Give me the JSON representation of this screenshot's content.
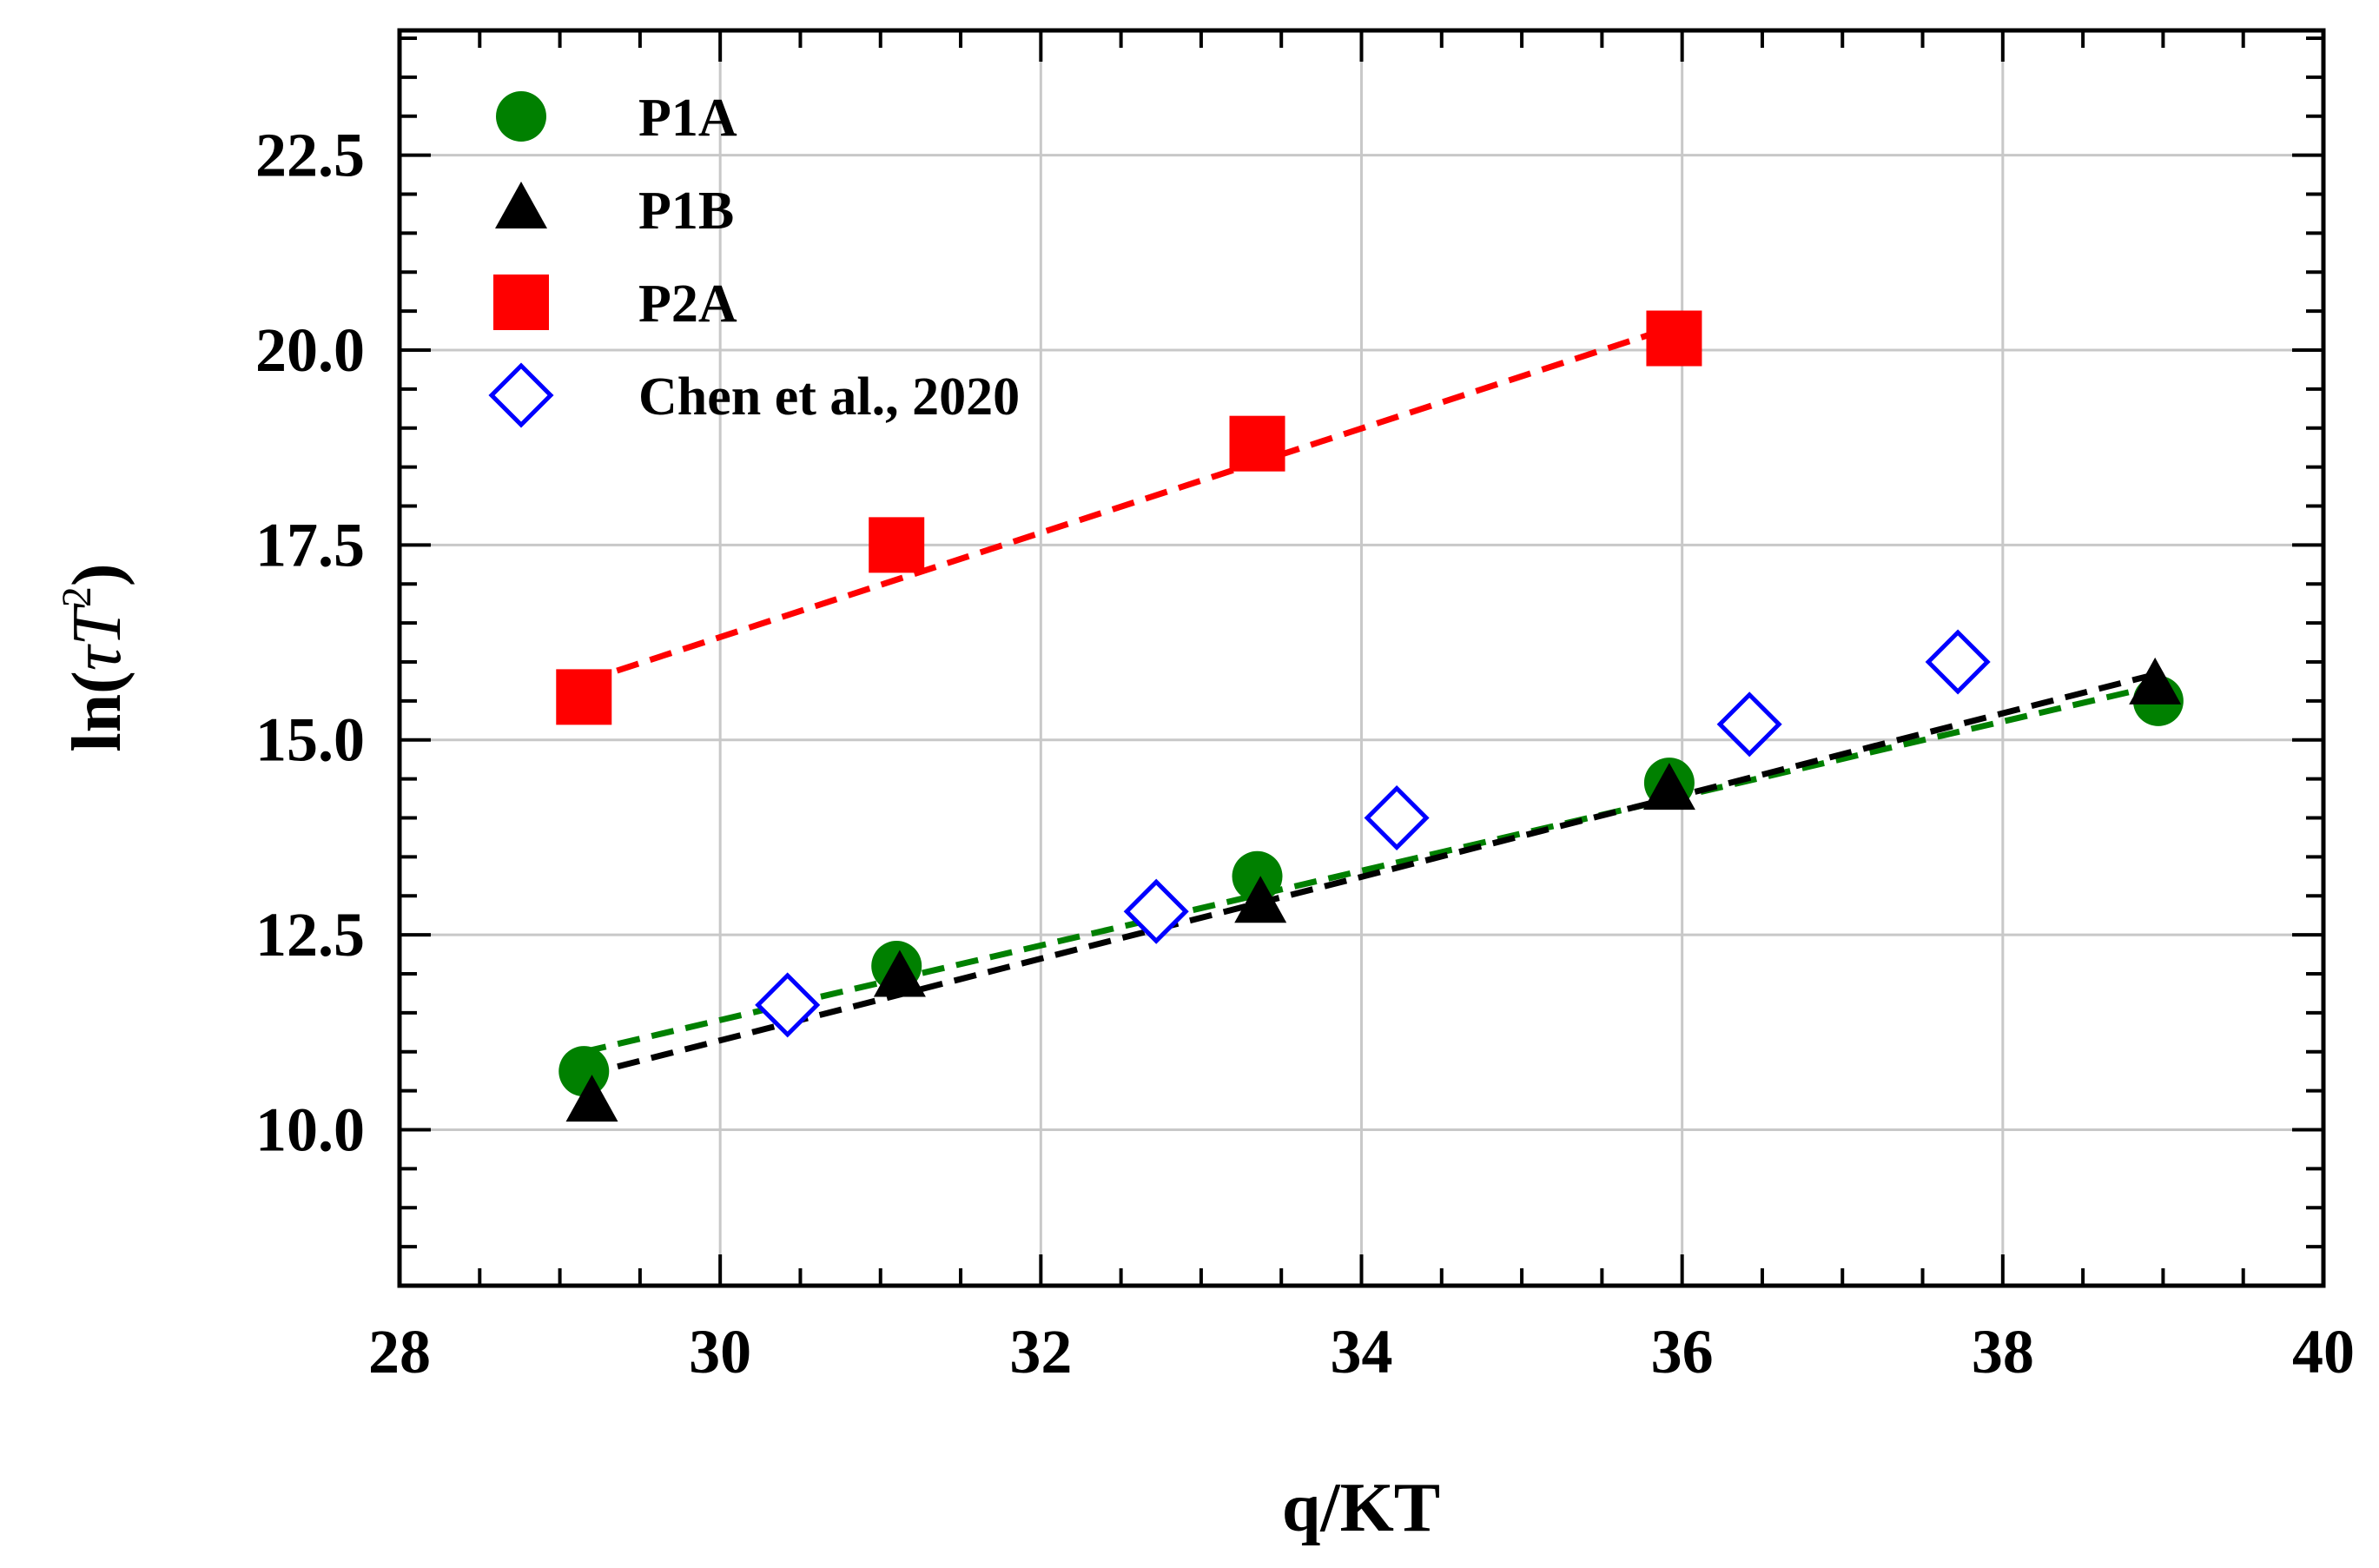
{
  "chart_data": {
    "type": "scatter",
    "title": "",
    "xlabel": "q/KT",
    "ylabel_prefix": "ln(",
    "ylabel_symbol": "τT",
    "ylabel_superscript": "2",
    "ylabel_suffix": ")",
    "xlim": [
      28,
      40
    ],
    "ylim": [
      8.0,
      24.1
    ],
    "x_ticks": [
      28,
      30,
      32,
      34,
      36,
      38,
      40
    ],
    "x_tick_labels": [
      "28",
      "30",
      "32",
      "34",
      "36",
      "38",
      "40"
    ],
    "y_ticks": [
      10.0,
      12.5,
      15.0,
      17.5,
      20.0,
      22.5
    ],
    "y_tick_labels": [
      "10.0",
      "12.5",
      "15.0",
      "17.5",
      "20.0",
      "22.5"
    ],
    "x_minor_step": 0.5,
    "y_minor_step": 0.5,
    "grid": true,
    "legend_position": "top-left",
    "series": [
      {
        "name": "P1A",
        "marker": "circle",
        "color": "#008000",
        "filled": true,
        "x": [
          29.15,
          31.1,
          33.35,
          35.92,
          38.97
        ],
        "y": [
          10.75,
          12.1,
          13.25,
          14.45,
          15.5
        ],
        "fit": {
          "x": [
            29.15,
            38.97
          ],
          "y": [
            11.0,
            15.7
          ],
          "color": "#008000"
        }
      },
      {
        "name": "P1B",
        "marker": "triangle",
        "color": "#000000",
        "filled": true,
        "x": [
          29.2,
          31.12,
          33.37,
          35.92,
          38.95
        ],
        "y": [
          10.35,
          11.95,
          12.9,
          14.35,
          15.7
        ],
        "fit": {
          "x": [
            29.15,
            38.97
          ],
          "y": [
            10.7,
            15.85
          ],
          "color": "#000000"
        }
      },
      {
        "name": "P2A",
        "marker": "square",
        "color": "#ff0000",
        "filled": true,
        "x": [
          29.15,
          31.1,
          33.35,
          35.95
        ],
        "y": [
          15.55,
          17.5,
          18.8,
          20.15
        ],
        "fit": {
          "x": [
            29.15,
            35.95
          ],
          "y": [
            15.75,
            20.3
          ],
          "color": "#ff0000"
        }
      },
      {
        "name": "Chen et al., 2020",
        "marker": "diamond",
        "color": "#0000ff",
        "filled": false,
        "x": [
          30.42,
          32.72,
          34.22,
          36.42,
          37.72
        ],
        "y": [
          11.6,
          12.8,
          14.0,
          15.2,
          16.0
        ]
      }
    ]
  }
}
